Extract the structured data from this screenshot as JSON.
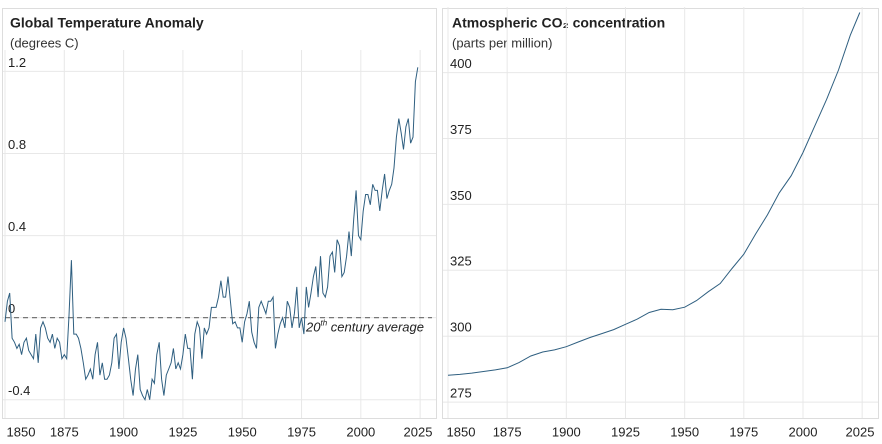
{
  "chart_data": [
    {
      "type": "line",
      "title": "Global Temperature Anomaly",
      "subtitle": "(degrees C)",
      "color": "#2f5f80",
      "xlim": [
        1850,
        2030
      ],
      "xticks": [
        1850,
        1875,
        1900,
        1925,
        1950,
        1975,
        2000,
        2025
      ],
      "ylim": [
        -0.45,
        1.28
      ],
      "yticks": [
        -0.4,
        0.0,
        0.4,
        0.8,
        1.2
      ],
      "grid": true,
      "reference_line": 0,
      "annotation": {
        "ordinal": "20",
        "suffix": "th",
        "text": "century average"
      },
      "x": [
        1850,
        1851,
        1852,
        1853,
        1854,
        1855,
        1856,
        1857,
        1858,
        1859,
        1860,
        1861,
        1862,
        1863,
        1864,
        1865,
        1866,
        1867,
        1868,
        1869,
        1870,
        1871,
        1872,
        1873,
        1874,
        1875,
        1876,
        1877,
        1878,
        1879,
        1880,
        1881,
        1882,
        1883,
        1884,
        1885,
        1886,
        1887,
        1888,
        1889,
        1890,
        1891,
        1892,
        1893,
        1894,
        1895,
        1896,
        1897,
        1898,
        1899,
        1900,
        1901,
        1902,
        1903,
        1904,
        1905,
        1906,
        1907,
        1908,
        1909,
        1910,
        1911,
        1912,
        1913,
        1914,
        1915,
        1916,
        1917,
        1918,
        1919,
        1920,
        1921,
        1922,
        1923,
        1924,
        1925,
        1926,
        1927,
        1928,
        1929,
        1930,
        1931,
        1932,
        1933,
        1934,
        1935,
        1936,
        1937,
        1938,
        1939,
        1940,
        1941,
        1942,
        1943,
        1944,
        1945,
        1946,
        1947,
        1948,
        1949,
        1950,
        1951,
        1952,
        1953,
        1954,
        1955,
        1956,
        1957,
        1958,
        1959,
        1960,
        1961,
        1962,
        1963,
        1964,
        1965,
        1966,
        1967,
        1968,
        1969,
        1970,
        1971,
        1972,
        1973,
        1974,
        1975,
        1976,
        1977,
        1978,
        1979,
        1980,
        1981,
        1982,
        1983,
        1984,
        1985,
        1986,
        1987,
        1988,
        1989,
        1990,
        1991,
        1992,
        1993,
        1994,
        1995,
        1996,
        1997,
        1998,
        1999,
        2000,
        2001,
        2002,
        2003,
        2004,
        2005,
        2006,
        2007,
        2008,
        2009,
        2010,
        2011,
        2012,
        2013,
        2014,
        2015,
        2016,
        2017,
        2018,
        2019,
        2020,
        2021,
        2022,
        2023,
        2024
      ],
      "values": [
        -0.02,
        0.08,
        0.12,
        -0.1,
        -0.12,
        -0.15,
        -0.13,
        -0.18,
        -0.12,
        -0.1,
        -0.16,
        -0.18,
        -0.2,
        -0.08,
        -0.22,
        -0.05,
        -0.02,
        -0.05,
        -0.1,
        -0.12,
        -0.08,
        -0.15,
        -0.1,
        -0.12,
        -0.2,
        -0.18,
        -0.2,
        0.01,
        0.28,
        -0.08,
        -0.08,
        -0.1,
        -0.15,
        -0.22,
        -0.3,
        -0.28,
        -0.25,
        -0.3,
        -0.18,
        -0.12,
        -0.28,
        -0.22,
        -0.3,
        -0.3,
        -0.28,
        -0.22,
        -0.1,
        -0.08,
        -0.25,
        -0.12,
        -0.05,
        -0.1,
        -0.2,
        -0.3,
        -0.38,
        -0.25,
        -0.18,
        -0.35,
        -0.38,
        -0.4,
        -0.35,
        -0.4,
        -0.3,
        -0.32,
        -0.18,
        -0.12,
        -0.3,
        -0.38,
        -0.28,
        -0.25,
        -0.22,
        -0.15,
        -0.25,
        -0.22,
        -0.25,
        -0.18,
        -0.08,
        -0.15,
        -0.15,
        -0.3,
        -0.08,
        -0.02,
        -0.05,
        -0.2,
        -0.05,
        -0.08,
        -0.05,
        0.05,
        0.05,
        0.05,
        0.1,
        0.18,
        0.1,
        0.1,
        0.2,
        0.08,
        -0.03,
        -0.02,
        -0.05,
        -0.05,
        -0.12,
        -0.02,
        0.02,
        0.08,
        -0.07,
        -0.12,
        -0.15,
        0.05,
        0.08,
        0.05,
        0.02,
        0.08,
        0.08,
        0.1,
        -0.15,
        -0.08,
        -0.03,
        0.0,
        -0.05,
        0.08,
        0.05,
        -0.05,
        0.02,
        0.15,
        -0.05,
        0.0,
        -0.08,
        0.15,
        0.05,
        0.12,
        0.2,
        0.25,
        0.1,
        0.3,
        0.12,
        0.1,
        0.15,
        0.3,
        0.32,
        0.22,
        0.38,
        0.35,
        0.2,
        0.22,
        0.3,
        0.42,
        0.3,
        0.48,
        0.62,
        0.4,
        0.38,
        0.52,
        0.6,
        0.6,
        0.55,
        0.65,
        0.62,
        0.62,
        0.52,
        0.62,
        0.7,
        0.58,
        0.62,
        0.65,
        0.73,
        0.88,
        0.97,
        0.9,
        0.82,
        0.93,
        0.97,
        0.85,
        0.88,
        1.15,
        1.22
      ]
    },
    {
      "type": "line",
      "title": "Atmospheric CO₂ concentration",
      "subtitle": "(parts per million)",
      "color": "#2f5f80",
      "xlim": [
        1850,
        2030
      ],
      "xticks": [
        1850,
        1875,
        1900,
        1925,
        1950,
        1975,
        2000,
        2025
      ],
      "ylim": [
        272,
        423
      ],
      "yticks": [
        275,
        300,
        325,
        350,
        375,
        400
      ],
      "grid": true,
      "x": [
        1850,
        1855,
        1860,
        1865,
        1870,
        1875,
        1880,
        1885,
        1890,
        1895,
        1900,
        1905,
        1910,
        1915,
        1920,
        1925,
        1930,
        1935,
        1940,
        1945,
        1950,
        1955,
        1960,
        1965,
        1970,
        1975,
        1980,
        1985,
        1990,
        1995,
        2000,
        2005,
        2010,
        2015,
        2020,
        2024
      ],
      "values": [
        285.2,
        285.5,
        286.0,
        286.6,
        287.2,
        288.0,
        290.0,
        292.5,
        294.0,
        294.8,
        296.0,
        297.8,
        299.5,
        301.0,
        302.5,
        304.5,
        306.5,
        309.0,
        310.2,
        310.0,
        311.0,
        313.5,
        316.9,
        320.0,
        325.7,
        331.1,
        338.8,
        346.1,
        354.4,
        360.9,
        369.7,
        379.8,
        389.9,
        401.0,
        414.2,
        422.8
      ]
    }
  ]
}
